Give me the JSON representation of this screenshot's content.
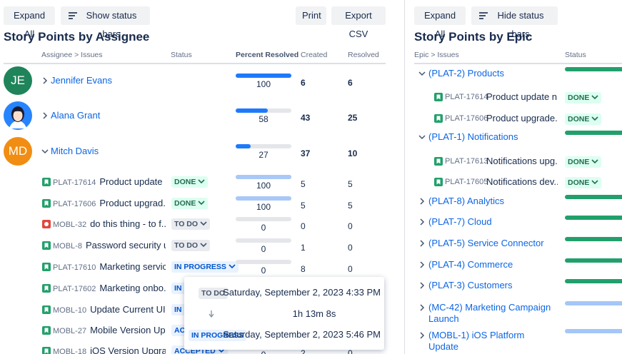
{
  "left": {
    "buttons": [
      "Expand All",
      "Show status bars",
      "Print",
      "Export CSV"
    ],
    "title": "Story Points by Assignee",
    "columns": [
      "Assignee > Issues",
      "Status",
      "Percent Resolved",
      "Created",
      "Resolved"
    ],
    "assignees": [
      {
        "initials": "JE",
        "avatar_color": "#1f845a",
        "name": "Jennifer Evans",
        "expanded": false,
        "percent_resolved": 100,
        "created": 6,
        "resolved": 6
      },
      {
        "name": "Alana Grant",
        "expanded": false,
        "percent_resolved": 58,
        "created": 43,
        "resolved": 25
      },
      {
        "initials": "MD",
        "avatar_color": "#f18d13",
        "name": "Mitch Davis",
        "expanded": true,
        "percent_resolved": 27,
        "created": 37,
        "resolved": 10
      }
    ],
    "issues": [
      {
        "key": "PLAT-17614",
        "summary": "Product update ...",
        "icon_color": "#22a06b",
        "status": "DONE",
        "percent_resolved": 100,
        "created": 5,
        "resolved": 5
      },
      {
        "key": "PLAT-17606",
        "summary": "Product upgrad...",
        "icon_color": "#22a06b",
        "status": "DONE",
        "percent_resolved": 100,
        "created": 5,
        "resolved": 5
      },
      {
        "key": "MOBL-32",
        "summary": "do this thing - to f...",
        "icon_color": "#e2483d",
        "status": "TO DO",
        "percent_resolved": 0,
        "created": 0,
        "resolved": 0
      },
      {
        "key": "MOBL-8",
        "summary": "Password security u...",
        "icon_color": "#22a06b",
        "status": "TO DO",
        "percent_resolved": 0,
        "created": 1,
        "resolved": 0
      },
      {
        "key": "PLAT-17610",
        "summary": "Marketing servic...",
        "icon_color": "#22a06b",
        "status": "IN PROGRESS",
        "percent_resolved": 0,
        "created": 8,
        "resolved": 0
      },
      {
        "key": "PLAT-17602",
        "summary": "Marketing onbo...",
        "icon_color": "#22a06b",
        "status": "IN PROGRESS"
      },
      {
        "key": "MOBL-10",
        "summary": "Update Current UI...",
        "icon_color": "#22a06b",
        "status": "IN PROGRESS"
      },
      {
        "key": "MOBL-27",
        "summary": "Mobile Version Up...",
        "icon_color": "#22a06b",
        "status": "ACCEPTED"
      },
      {
        "key": "MOBL-18",
        "summary": "iOS Version Upgra...",
        "icon_color": "#22a06b",
        "status": "ACCEPTED",
        "percent_resolved": 0,
        "created": 2,
        "resolved": 0
      }
    ],
    "tooltip": {
      "from_status": "TO DO",
      "from_time": "Saturday, September 2, 2023 4:33 PM",
      "duration": "1h 13m 8s",
      "to_status": "IN PROGRESS",
      "to_time": "Saturday, September 2, 2023 5:46 PM"
    }
  },
  "right": {
    "buttons": [
      "Expand All",
      "Hide status bars"
    ],
    "title": "Story Points by Epic",
    "columns": [
      "Epic > Issues",
      "Status"
    ],
    "epics": [
      {
        "name": "(PLAT-2) Products",
        "expanded": true,
        "bar_color": "#22a06b",
        "issues": [
          {
            "key": "PLAT-17614",
            "summary": "Product update n...",
            "status": "DONE"
          },
          {
            "key": "PLAT-17606",
            "summary": "Product upgrade...",
            "status": "DONE"
          }
        ]
      },
      {
        "name": "(PLAT-1) Notifications",
        "expanded": true,
        "bar_color": "#22a06b",
        "issues": [
          {
            "key": "PLAT-17613",
            "summary": "Notifications upg...",
            "status": "DONE"
          },
          {
            "key": "PLAT-17605",
            "summary": "Notifications dev...",
            "status": "DONE"
          }
        ]
      },
      {
        "name": "(PLAT-8) Analytics",
        "expanded": false,
        "bar_color": "#22a06b"
      },
      {
        "name": "(PLAT-7) Cloud",
        "expanded": false,
        "bar_color": "#22a06b"
      },
      {
        "name": "(PLAT-5) Service Connector",
        "expanded": false,
        "bar_color": "#22a06b"
      },
      {
        "name": "(PLAT-4) Commerce",
        "expanded": false,
        "bar_color": "#22a06b"
      },
      {
        "name": "(PLAT-3) Customers",
        "expanded": false,
        "bar_color": "#22a06b"
      },
      {
        "name": "(MC-42) Marketing Campaign Launch",
        "expanded": false,
        "bar_color": "#a4c6f8"
      },
      {
        "name": "(MOBL-1) iOS Platform Update",
        "expanded": false,
        "bar_color": "#a4c6f8"
      }
    ]
  }
}
